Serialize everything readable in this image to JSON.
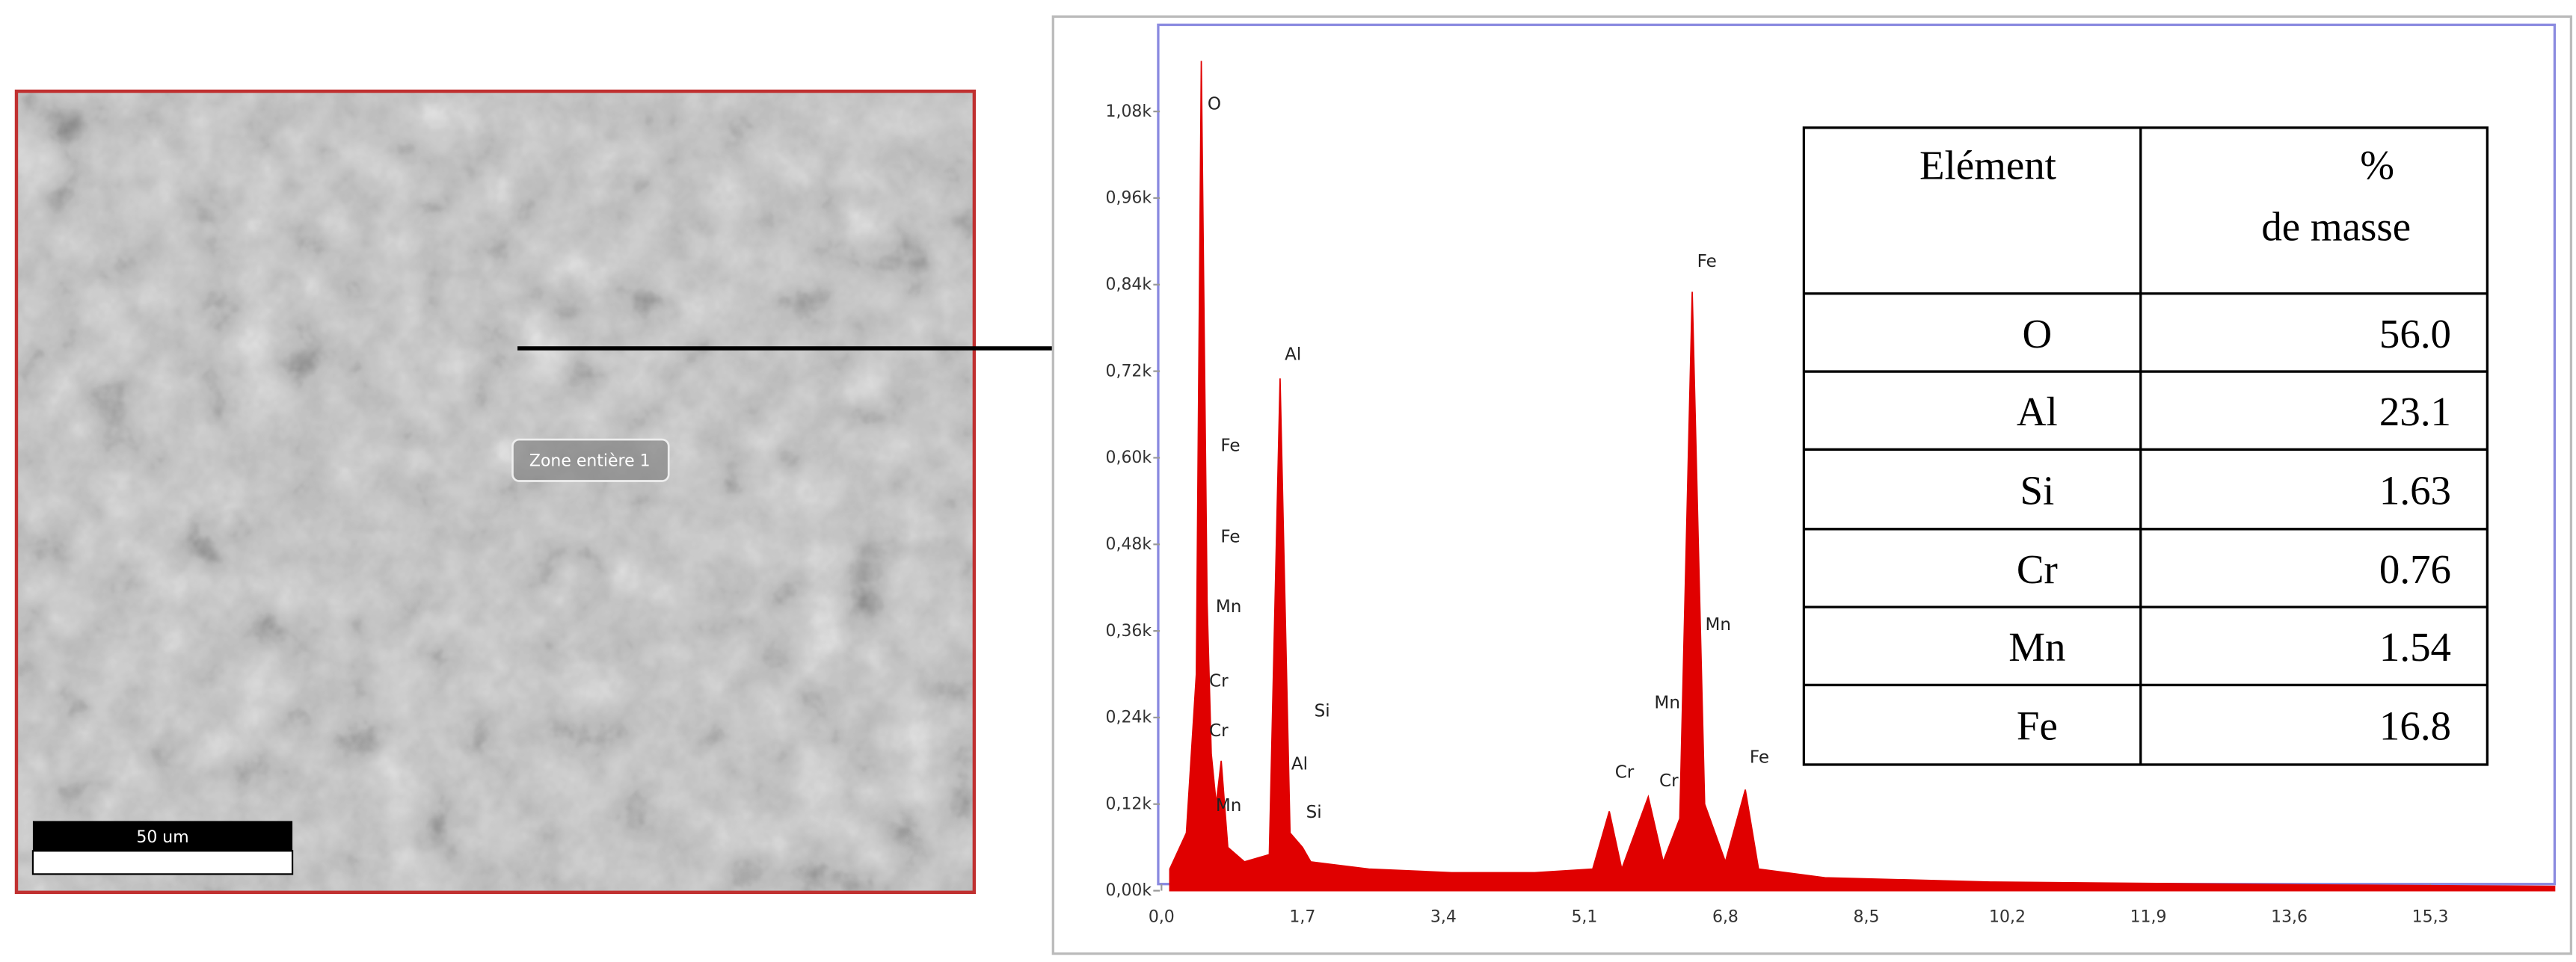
{
  "sem_image": {
    "zone_label": "Zone entière 1",
    "scale_bar": "50 um"
  },
  "chart_data": {
    "type": "area",
    "xlim": [
      0,
      16.8
    ],
    "ylim": [
      0,
      1.2
    ],
    "xticks": [
      {
        "value": 0,
        "label": "0,0"
      },
      {
        "value": 1.7,
        "label": "1,7"
      },
      {
        "value": 3.4,
        "label": "3,4"
      },
      {
        "value": 5.1,
        "label": "5,1"
      },
      {
        "value": 6.8,
        "label": "6,8"
      },
      {
        "value": 8.5,
        "label": "8,5"
      },
      {
        "value": 10.2,
        "label": "10,2"
      },
      {
        "value": 11.9,
        "label": "11,9"
      },
      {
        "value": 13.6,
        "label": "13,6"
      },
      {
        "value": 15.3,
        "label": "15,3"
      }
    ],
    "yticks": [
      {
        "value": 0,
        "label": "0,00k"
      },
      {
        "value": 0.12,
        "label": "0,12k"
      },
      {
        "value": 0.24,
        "label": "0,24k"
      },
      {
        "value": 0.36,
        "label": "0,36k"
      },
      {
        "value": 0.48,
        "label": "0,48k"
      },
      {
        "value": 0.6,
        "label": "0,60k"
      },
      {
        "value": 0.72,
        "label": "0,72k"
      },
      {
        "value": 0.84,
        "label": "0,84k"
      },
      {
        "value": 0.96,
        "label": "0,96k"
      },
      {
        "value": 1.08,
        "label": "1,08k"
      }
    ],
    "series": [
      {
        "color": "#e00000",
        "x": [
          0.1,
          0.3,
          0.42,
          0.48,
          0.55,
          0.6,
          0.66,
          0.72,
          0.8,
          1.0,
          1.3,
          1.43,
          1.55,
          1.7,
          1.8,
          2.5,
          3.5,
          4.5,
          5.2,
          5.4,
          5.55,
          5.87,
          6.05,
          6.25,
          6.4,
          6.55,
          6.8,
          7.04,
          7.2,
          8,
          10,
          12,
          14,
          16.8
        ],
        "values": [
          0.03,
          0.08,
          0.3,
          1.15,
          0.4,
          0.19,
          0.12,
          0.18,
          0.06,
          0.04,
          0.05,
          0.71,
          0.08,
          0.06,
          0.04,
          0.03,
          0.025,
          0.025,
          0.03,
          0.11,
          0.03,
          0.13,
          0.04,
          0.1,
          0.83,
          0.12,
          0.04,
          0.14,
          0.03,
          0.018,
          0.012,
          0.01,
          0.008,
          0.006
        ]
      }
    ],
    "peak_labels": [
      "O",
      "Fe",
      "Fe",
      "Mn",
      "Cr",
      "Cr",
      "Mn",
      "Al",
      "Al",
      "Si",
      "Si",
      "Cr",
      "Cr",
      "Mn",
      "Mn",
      "Fe",
      "Fe"
    ]
  },
  "table": {
    "header": {
      "element": "Elément",
      "mass": [
        "%",
        "de masse"
      ]
    },
    "rows": [
      [
        "O",
        "56.0"
      ],
      [
        "Al",
        "23.1"
      ],
      [
        "Si",
        "1.63"
      ],
      [
        "Cr",
        "0.76"
      ],
      [
        "Mn",
        "1.54"
      ],
      [
        "Fe",
        "16.8"
      ]
    ]
  }
}
